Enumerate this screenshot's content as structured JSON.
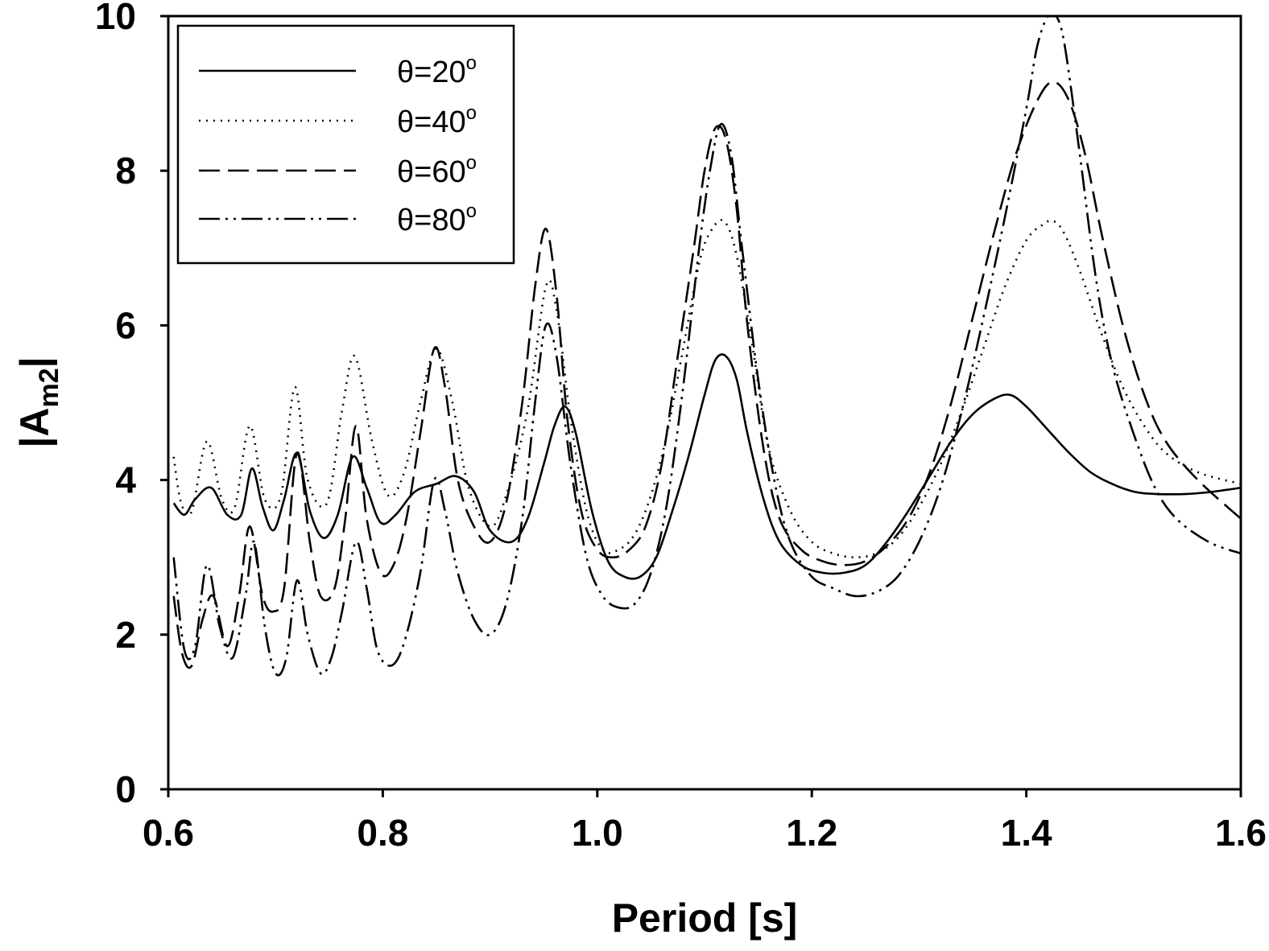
{
  "chart_data": {
    "type": "line",
    "title": "",
    "xlabel": "Period [s]",
    "ylabel_main": "|A",
    "ylabel_sub": "m2",
    "ylabel_end": "|",
    "xlim": [
      0.6,
      1.6
    ],
    "ylim": [
      0,
      10
    ],
    "xticks": [
      0.6,
      0.8,
      1.0,
      1.2,
      1.4,
      1.6
    ],
    "xtick_labels": [
      "0.6",
      "0.8",
      "1.0",
      "1.2",
      "1.4",
      "1.6"
    ],
    "yticks": [
      0,
      2,
      4,
      6,
      8,
      10
    ],
    "ytick_labels": [
      "0",
      "2",
      "4",
      "6",
      "8",
      "10"
    ],
    "grid": false,
    "legend_position": "top-left",
    "series": [
      {
        "name": "θ=20",
        "name_sup": "o",
        "dash": "",
        "x": [
          0.605,
          0.615,
          0.625,
          0.64,
          0.655,
          0.668,
          0.678,
          0.688,
          0.698,
          0.708,
          0.72,
          0.732,
          0.745,
          0.758,
          0.772,
          0.785,
          0.798,
          0.812,
          0.83,
          0.85,
          0.868,
          0.885,
          0.9,
          0.92,
          0.935,
          0.95,
          0.96,
          0.97,
          0.98,
          0.995,
          1.01,
          1.025,
          1.04,
          1.055,
          1.07,
          1.085,
          1.1,
          1.11,
          1.12,
          1.13,
          1.14,
          1.155,
          1.17,
          1.19,
          1.21,
          1.23,
          1.25,
          1.27,
          1.29,
          1.31,
          1.33,
          1.35,
          1.37,
          1.385,
          1.4,
          1.42,
          1.44,
          1.46,
          1.48,
          1.5,
          1.52,
          1.55,
          1.575,
          1.6
        ],
        "y": [
          3.7,
          3.55,
          3.75,
          3.9,
          3.55,
          3.55,
          4.15,
          3.65,
          3.35,
          3.75,
          4.35,
          3.6,
          3.25,
          3.55,
          4.3,
          3.9,
          3.45,
          3.55,
          3.85,
          3.95,
          4.05,
          3.85,
          3.35,
          3.2,
          3.5,
          4.2,
          4.7,
          4.95,
          4.6,
          3.6,
          2.95,
          2.75,
          2.75,
          3.0,
          3.6,
          4.3,
          5.1,
          5.55,
          5.6,
          5.3,
          4.6,
          3.75,
          3.2,
          2.9,
          2.8,
          2.8,
          2.9,
          3.2,
          3.6,
          4.05,
          4.5,
          4.85,
          5.05,
          5.1,
          4.95,
          4.65,
          4.35,
          4.1,
          3.95,
          3.85,
          3.82,
          3.82,
          3.85,
          3.9
        ]
      },
      {
        "name": "θ=40",
        "name_sup": "o",
        "dash": "2,7",
        "x": [
          0.605,
          0.612,
          0.622,
          0.636,
          0.65,
          0.662,
          0.676,
          0.69,
          0.705,
          0.718,
          0.73,
          0.748,
          0.762,
          0.774,
          0.79,
          0.805,
          0.82,
          0.835,
          0.85,
          0.865,
          0.88,
          0.9,
          0.915,
          0.935,
          0.952,
          0.962,
          0.975,
          0.99,
          1.005,
          1.02,
          1.035,
          1.05,
          1.065,
          1.08,
          1.095,
          1.105,
          1.118,
          1.13,
          1.145,
          1.16,
          1.18,
          1.2,
          1.22,
          1.24,
          1.26,
          1.28,
          1.3,
          1.32,
          1.34,
          1.36,
          1.38,
          1.4,
          1.415,
          1.425,
          1.435,
          1.45,
          1.47,
          1.49,
          1.51,
          1.53,
          1.56,
          1.6
        ],
        "y": [
          4.3,
          3.7,
          3.6,
          4.5,
          3.75,
          3.65,
          4.7,
          3.75,
          3.8,
          5.2,
          4.0,
          3.7,
          4.9,
          5.6,
          4.5,
          3.8,
          4.1,
          5.0,
          5.7,
          5.0,
          3.9,
          3.4,
          3.8,
          4.9,
          6.5,
          6.2,
          4.8,
          3.6,
          3.1,
          3.1,
          3.3,
          3.8,
          4.6,
          5.7,
          6.8,
          7.2,
          7.35,
          6.9,
          5.7,
          4.4,
          3.6,
          3.2,
          3.05,
          3.0,
          3.05,
          3.25,
          3.65,
          4.2,
          4.9,
          5.7,
          6.5,
          7.1,
          7.3,
          7.35,
          7.2,
          6.7,
          5.9,
          5.2,
          4.7,
          4.35,
          4.1,
          3.95
        ]
      },
      {
        "name": "θ=60",
        "name_sup": "o",
        "dash": "26,10",
        "x": [
          0.605,
          0.613,
          0.622,
          0.632,
          0.642,
          0.655,
          0.666,
          0.676,
          0.688,
          0.698,
          0.708,
          0.72,
          0.732,
          0.742,
          0.755,
          0.765,
          0.775,
          0.785,
          0.798,
          0.81,
          0.822,
          0.835,
          0.848,
          0.858,
          0.87,
          0.885,
          0.9,
          0.915,
          0.93,
          0.942,
          0.952,
          0.962,
          0.972,
          0.985,
          1.0,
          1.015,
          1.03,
          1.045,
          1.06,
          1.075,
          1.09,
          1.1,
          1.11,
          1.12,
          1.13,
          1.14,
          1.155,
          1.17,
          1.19,
          1.21,
          1.23,
          1.25,
          1.27,
          1.29,
          1.31,
          1.33,
          1.35,
          1.37,
          1.39,
          1.41,
          1.425,
          1.44,
          1.455,
          1.47,
          1.49,
          1.51,
          1.53,
          1.56,
          1.6
        ],
        "y": [
          2.5,
          1.75,
          1.6,
          2.2,
          2.5,
          1.85,
          2.5,
          3.4,
          2.5,
          2.3,
          2.6,
          4.35,
          3.2,
          2.5,
          2.6,
          3.5,
          4.7,
          3.5,
          2.8,
          2.9,
          3.5,
          4.6,
          5.7,
          5.2,
          4.0,
          3.4,
          3.2,
          3.7,
          5.0,
          6.5,
          7.25,
          6.4,
          4.8,
          3.6,
          3.1,
          3.0,
          3.1,
          3.4,
          4.2,
          5.6,
          7.0,
          8.0,
          8.55,
          8.4,
          7.5,
          6.0,
          4.4,
          3.5,
          3.1,
          2.95,
          2.9,
          2.95,
          3.15,
          3.5,
          4.1,
          5.0,
          6.1,
          7.2,
          8.2,
          8.9,
          9.15,
          8.9,
          8.2,
          7.2,
          6.0,
          5.1,
          4.5,
          4.0,
          3.5
        ]
      },
      {
        "name": "θ=80",
        "name_sup": "o",
        "dash": "26,7,3,7,3,7",
        "x": [
          0.605,
          0.615,
          0.625,
          0.636,
          0.648,
          0.66,
          0.672,
          0.68,
          0.69,
          0.7,
          0.71,
          0.72,
          0.73,
          0.742,
          0.752,
          0.762,
          0.775,
          0.785,
          0.795,
          0.808,
          0.82,
          0.835,
          0.848,
          0.858,
          0.87,
          0.885,
          0.9,
          0.915,
          0.93,
          0.942,
          0.952,
          0.962,
          0.975,
          0.99,
          1.005,
          1.02,
          1.035,
          1.05,
          1.065,
          1.08,
          1.095,
          1.105,
          1.115,
          1.125,
          1.135,
          1.15,
          1.165,
          1.18,
          1.2,
          1.22,
          1.24,
          1.26,
          1.28,
          1.3,
          1.32,
          1.34,
          1.36,
          1.38,
          1.4,
          1.41,
          1.42,
          1.428,
          1.436,
          1.45,
          1.465,
          1.48,
          1.5,
          1.52,
          1.54,
          1.57,
          1.6
        ],
        "y": [
          3.0,
          1.8,
          1.85,
          2.9,
          2.1,
          1.7,
          2.5,
          3.2,
          2.1,
          1.5,
          1.7,
          2.7,
          2.0,
          1.5,
          1.7,
          2.3,
          3.2,
          2.6,
          1.8,
          1.6,
          1.9,
          2.8,
          4.0,
          3.6,
          2.8,
          2.2,
          2.0,
          2.4,
          3.5,
          5.0,
          6.0,
          5.6,
          4.2,
          3.0,
          2.5,
          2.35,
          2.4,
          2.8,
          3.7,
          5.2,
          7.0,
          8.0,
          8.6,
          8.2,
          7.0,
          5.3,
          4.0,
          3.2,
          2.75,
          2.6,
          2.5,
          2.55,
          2.75,
          3.2,
          3.9,
          4.9,
          6.1,
          7.4,
          8.8,
          9.6,
          10.0,
          10.0,
          9.6,
          8.2,
          6.6,
          5.5,
          4.6,
          3.9,
          3.5,
          3.2,
          3.05
        ]
      }
    ]
  }
}
